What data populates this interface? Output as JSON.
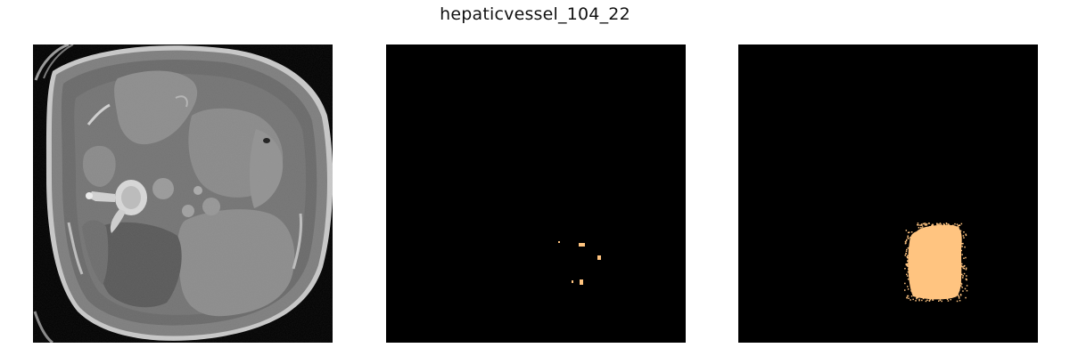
{
  "figure": {
    "title": "hepaticvessel_104_22"
  },
  "panels": [
    {
      "kind": "ct-slice",
      "colormap": "grayscale"
    },
    {
      "kind": "segmentation-mask",
      "mask_color": "#ffc480",
      "background_color": "#000000"
    },
    {
      "kind": "segmentation-mask",
      "mask_color": "#ffc480",
      "background_color": "#000000"
    }
  ]
}
